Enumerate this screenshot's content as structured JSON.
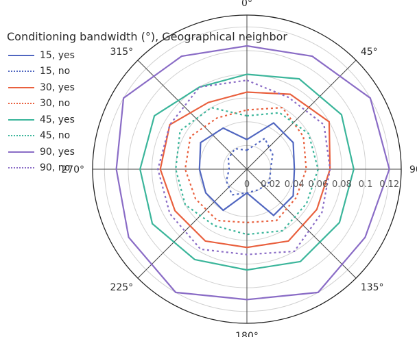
{
  "chart_data": {
    "type": "polar-line",
    "angles_deg": [
      0,
      30,
      60,
      90,
      120,
      150,
      180,
      210,
      240,
      270,
      300,
      330
    ],
    "angular_tick_labels": [
      "0°",
      "45°",
      "90°",
      "135°",
      "180°",
      "225°",
      "270°",
      "315°"
    ],
    "radial_tick_labels": [
      "0",
      "0.02",
      "0.04",
      "0.06",
      "0.08",
      "0.1",
      "0.12"
    ],
    "radial_ticks": [
      0,
      0.02,
      0.04,
      0.06,
      0.08,
      0.1,
      0.12
    ],
    "rlim": [
      0,
      0.13
    ],
    "legend_title": "Conditioning bandwidth (°), Geographical neighbor",
    "legend_position": "top-left",
    "series": [
      {
        "name": "15, yes",
        "color": "#5066c0",
        "dash": "solid",
        "values": [
          0.025,
          0.045,
          0.045,
          0.04,
          0.045,
          0.045,
          0.02,
          0.04,
          0.04,
          0.04,
          0.045,
          0.04
        ]
      },
      {
        "name": "15, no",
        "color": "#5066c0",
        "dash": "dot",
        "values": [
          0.016,
          0.03,
          0.025,
          0.02,
          0.022,
          0.02,
          0.02,
          0.025,
          0.02,
          0.015,
          0.018,
          0.02
        ]
      },
      {
        "name": "30, yes",
        "color": "#e9603e",
        "dash": "solid",
        "values": [
          0.065,
          0.073,
          0.08,
          0.07,
          0.068,
          0.07,
          0.066,
          0.07,
          0.07,
          0.073,
          0.075,
          0.065
        ]
      },
      {
        "name": "30, no",
        "color": "#e9603e",
        "dash": "dot",
        "values": [
          0.05,
          0.06,
          0.055,
          0.05,
          0.048,
          0.05,
          0.045,
          0.05,
          0.05,
          0.052,
          0.055,
          0.05
        ]
      },
      {
        "name": "45, yes",
        "color": "#3ab59a",
        "dash": "solid",
        "values": [
          0.08,
          0.088,
          0.092,
          0.09,
          0.09,
          0.09,
          0.085,
          0.088,
          0.092,
          0.09,
          0.09,
          0.08
        ]
      },
      {
        "name": "45, no",
        "color": "#3ab59a",
        "dash": "dot",
        "values": [
          0.045,
          0.055,
          0.06,
          0.06,
          0.058,
          0.06,
          0.055,
          0.055,
          0.06,
          0.06,
          0.065,
          0.06
        ]
      },
      {
        "name": "90, yes",
        "color": "#8a6cc6",
        "dash": "solid",
        "values": [
          0.104,
          0.11,
          0.12,
          0.12,
          0.115,
          0.12,
          0.11,
          0.12,
          0.115,
          0.11,
          0.12,
          0.11
        ]
      },
      {
        "name": "90, no",
        "color": "#8a6cc6",
        "dash": "dot",
        "values": [
          0.075,
          0.07,
          0.075,
          0.07,
          0.073,
          0.08,
          0.072,
          0.078,
          0.075,
          0.075,
          0.075,
          0.08
        ]
      }
    ]
  }
}
